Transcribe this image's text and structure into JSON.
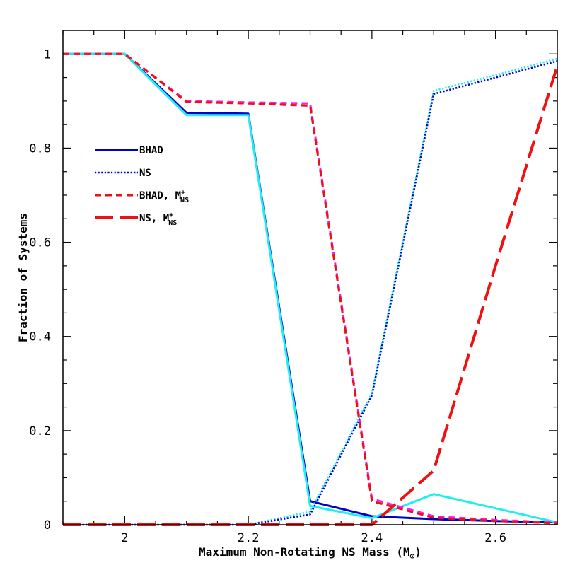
{
  "chart_data": {
    "type": "line",
    "xlabel": "Maximum Non-Rotating NS Mass (M",
    "xlabel_sub": "⊙",
    "xlabel_close": ")",
    "ylabel": "Fraction of Systems",
    "xlim": [
      1.9,
      2.7
    ],
    "ylim": [
      0,
      1.05
    ],
    "x_ticks": [
      2,
      2.2,
      2.4,
      2.6
    ],
    "x_tick_labels": [
      "2",
      "2.2",
      "2.4",
      "2.6"
    ],
    "y_ticks": [
      0,
      0.2,
      0.4,
      0.6,
      0.8,
      1
    ],
    "y_tick_labels": [
      "0",
      "0.2",
      "0.4",
      "0.6",
      "0.8",
      "1"
    ],
    "legend_position": "upper-left",
    "series": [
      {
        "key": "bhad",
        "legend": "BHAD",
        "color": "#0000cc",
        "style": "solid",
        "x": [
          1.9,
          2.0,
          2.1,
          2.2,
          2.3,
          2.4,
          2.5,
          2.6,
          2.7
        ],
        "y": [
          1.0,
          1.0,
          0.875,
          0.873,
          0.05,
          0.018,
          0.012,
          0.008,
          0.005
        ]
      },
      {
        "key": "bhad_cyan",
        "legend": "",
        "color": "#22eeee",
        "style": "solid",
        "x": [
          1.9,
          2.0,
          2.1,
          2.2,
          2.3,
          2.4,
          2.5,
          2.6,
          2.7
        ],
        "y": [
          1.0,
          1.0,
          0.87,
          0.87,
          0.04,
          0.014,
          0.065,
          0.035,
          0.005
        ]
      },
      {
        "key": "ns_cyan",
        "legend": "",
        "color": "#22eeee",
        "style": "dotted",
        "x": [
          1.9,
          2.0,
          2.1,
          2.2,
          2.3,
          2.4,
          2.5,
          2.6,
          2.7
        ],
        "y": [
          0,
          0,
          0,
          0,
          0.028,
          0.28,
          0.922,
          0.955,
          0.99
        ]
      },
      {
        "key": "ns",
        "legend": "NS",
        "color": "#0000cc",
        "style": "dotted",
        "x": [
          1.9,
          2.0,
          2.1,
          2.2,
          2.3,
          2.4,
          2.5,
          2.6,
          2.7
        ],
        "y": [
          0,
          0,
          0,
          0,
          0.022,
          0.275,
          0.915,
          0.95,
          0.985
        ]
      },
      {
        "key": "bhad_mns_magenta",
        "legend": "",
        "color": "#ee22ee",
        "style": "dashed",
        "x": [
          1.9,
          2.0,
          2.1,
          2.2,
          2.3,
          2.4,
          2.5,
          2.6,
          2.7
        ],
        "y": [
          1.0,
          1.0,
          0.9,
          0.897,
          0.895,
          0.055,
          0.018,
          0.01,
          0.005
        ]
      },
      {
        "key": "bhad_mns",
        "legend": "BHAD, M",
        "legend_sup": "+",
        "legend_sub": "NS",
        "color": "#ee1111",
        "style": "dashed",
        "x": [
          1.9,
          2.0,
          2.1,
          2.2,
          2.3,
          2.4,
          2.5,
          2.6,
          2.7
        ],
        "y": [
          1.0,
          1.0,
          0.898,
          0.895,
          0.89,
          0.05,
          0.015,
          0.008,
          0.003
        ]
      },
      {
        "key": "ns_mns",
        "legend": "NS, M",
        "legend_sup": "+",
        "legend_sub": "NS",
        "color": "#ee1111",
        "style": "longdash",
        "x": [
          1.9,
          2.0,
          2.1,
          2.2,
          2.3,
          2.4,
          2.5,
          2.6,
          2.7
        ],
        "y": [
          0,
          0,
          0,
          0,
          0,
          0,
          0.115,
          0.55,
          0.975
        ]
      }
    ]
  }
}
